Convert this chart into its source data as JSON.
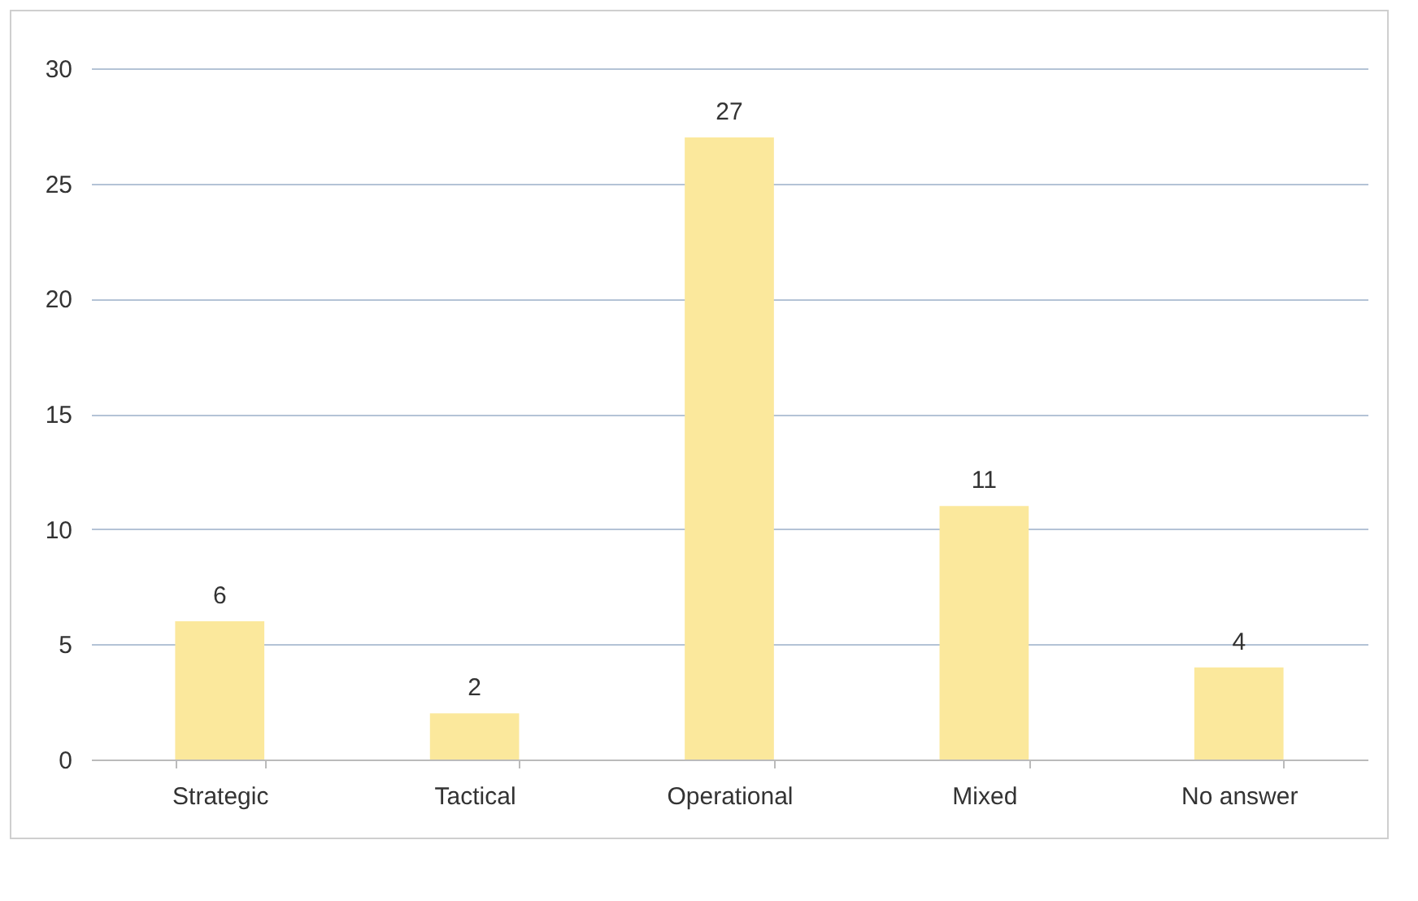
{
  "chart_data": {
    "type": "bar",
    "categories": [
      "Strategic",
      "Tactical",
      "Operational",
      "Mixed",
      "No answer"
    ],
    "values": [
      6,
      2,
      27,
      11,
      4
    ],
    "color": "#fbe89c",
    "ylim": [
      0,
      30
    ],
    "yticks": [
      0,
      5,
      10,
      15,
      20,
      25,
      30
    ],
    "grid": "y",
    "data_labels": true
  }
}
